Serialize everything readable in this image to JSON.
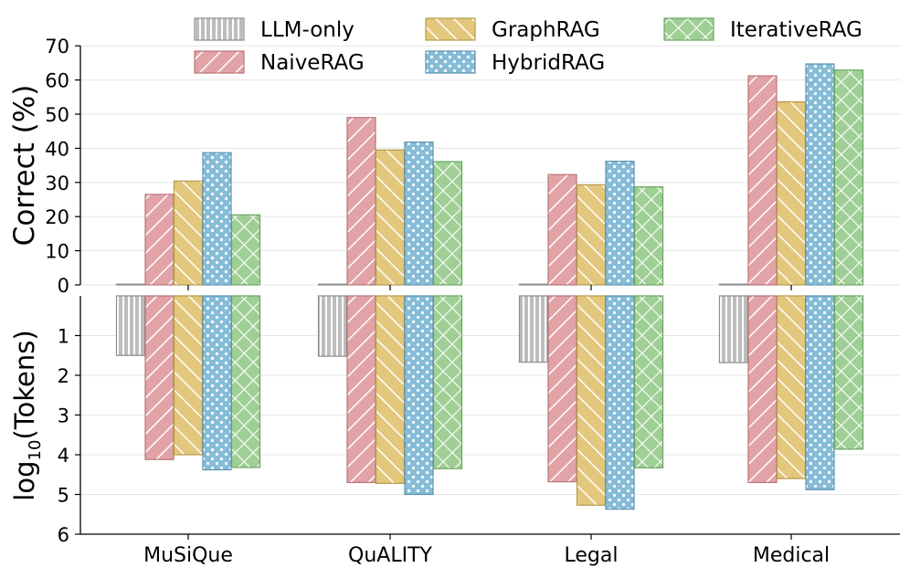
{
  "chart_data": [
    {
      "type": "bar",
      "categories": [
        "MuSiQue",
        "QuALITY",
        "Legal",
        "Medical"
      ],
      "ylabel": "Correct (%)",
      "ylim": [
        0,
        70
      ],
      "yticks": [
        "0",
        "10",
        "20",
        "30",
        "40",
        "50",
        "60",
        "70"
      ],
      "grid": true,
      "series": [
        {
          "name": "LLM-only",
          "values": [
            0,
            0,
            0,
            0
          ]
        },
        {
          "name": "NaiveRAG",
          "values": [
            26.5,
            49,
            32.3,
            61.2
          ]
        },
        {
          "name": "GraphRAG",
          "values": [
            30.4,
            39.5,
            29.3,
            53.6
          ]
        },
        {
          "name": "HybridRAG",
          "values": [
            38.7,
            41.8,
            36.2,
            64.7
          ]
        },
        {
          "name": "IterativeRAG",
          "values": [
            20.5,
            36.1,
            28.7,
            62.9
          ]
        }
      ]
    },
    {
      "type": "bar",
      "categories": [
        "MuSiQue",
        "QuALITY",
        "Legal",
        "Medical"
      ],
      "ylabel_main": "log",
      "ylabel_sub": "10",
      "ylabel_rest": "(Tokens)",
      "ylim": [
        0,
        6
      ],
      "y_inverted": true,
      "yticks": [
        "1",
        "2",
        "3",
        "4",
        "5",
        "6"
      ],
      "grid": true,
      "series": [
        {
          "name": "LLM-only",
          "values": [
            1.5,
            1.52,
            1.67,
            1.68
          ]
        },
        {
          "name": "NaiveRAG",
          "values": [
            4.12,
            4.7,
            4.68,
            4.7
          ]
        },
        {
          "name": "GraphRAG",
          "values": [
            4.0,
            4.72,
            5.27,
            4.6
          ]
        },
        {
          "name": "HybridRAG",
          "values": [
            4.38,
            5.0,
            5.37,
            4.88
          ]
        },
        {
          "name": "IterativeRAG",
          "values": [
            4.32,
            4.35,
            4.33,
            3.86
          ]
        }
      ]
    }
  ],
  "legend": {
    "placement": "top",
    "entries": [
      {
        "name": "LLM-only",
        "fill": "#bdbdbd",
        "edge": "#8c8c8c",
        "pattern": "vlines"
      },
      {
        "name": "GraphRAG",
        "fill": "#e3c77c",
        "edge": "#b59a48",
        "pattern": "backslash"
      },
      {
        "name": "IterativeRAG",
        "fill": "#9fcf95",
        "edge": "#6aa55f",
        "pattern": "cross"
      },
      {
        "name": "NaiveRAG",
        "fill": "#e2a3a6",
        "edge": "#b87478",
        "pattern": "slash"
      },
      {
        "name": "HybridRAG",
        "fill": "#86bcd7",
        "edge": "#5a92b0",
        "pattern": "dots"
      }
    ]
  }
}
